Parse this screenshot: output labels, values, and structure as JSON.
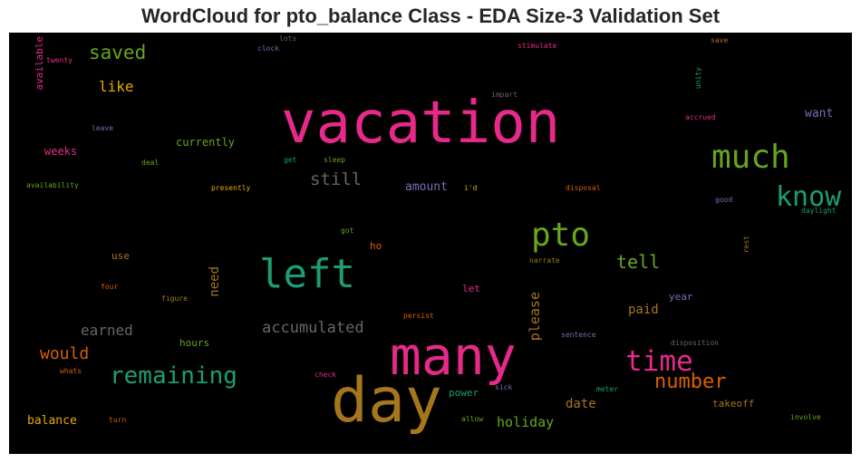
{
  "title": "WordCloud for pto_balance Class - EDA Size-3 Validation Set",
  "words": [
    {
      "text": "vacation",
      "color": "#e7298a"
    },
    {
      "text": "many",
      "color": "#e7298a"
    },
    {
      "text": "day",
      "color": "#a6761d"
    },
    {
      "text": "left",
      "color": "#1b9e77"
    },
    {
      "text": "pto",
      "color": "#66a61e"
    },
    {
      "text": "much",
      "color": "#66a61e"
    },
    {
      "text": "know",
      "color": "#1b9e77"
    },
    {
      "text": "time",
      "color": "#e7298a"
    },
    {
      "text": "remaining",
      "color": "#1b9e77"
    },
    {
      "text": "number",
      "color": "#d95f02"
    },
    {
      "text": "saved",
      "color": "#66a61e"
    },
    {
      "text": "still",
      "color": "#666666"
    },
    {
      "text": "accumulated",
      "color": "#666666"
    },
    {
      "text": "tell",
      "color": "#66a61e"
    },
    {
      "text": "earned",
      "color": "#666666"
    },
    {
      "text": "would",
      "color": "#d95f02"
    },
    {
      "text": "like",
      "color": "#e6ab02"
    },
    {
      "text": "holiday",
      "color": "#66a61e"
    },
    {
      "text": "please",
      "color": "#a6761d"
    },
    {
      "text": "need",
      "color": "#a6761d"
    },
    {
      "text": "balance",
      "color": "#e6ab02"
    },
    {
      "text": "date",
      "color": "#a6761d"
    },
    {
      "text": "paid",
      "color": "#a6761d"
    },
    {
      "text": "amount",
      "color": "#7570b3"
    },
    {
      "text": "want",
      "color": "#7570b3"
    },
    {
      "text": "currently",
      "color": "#66a61e"
    },
    {
      "text": "weeks",
      "color": "#e7298a"
    },
    {
      "text": "hours",
      "color": "#66a61e"
    },
    {
      "text": "year",
      "color": "#7570b3"
    },
    {
      "text": "takeoff",
      "color": "#a6761d"
    },
    {
      "text": "power",
      "color": "#1b9e77"
    },
    {
      "text": "available",
      "color": "#e7298a"
    },
    {
      "text": "use",
      "color": "#a6761d"
    },
    {
      "text": "ho",
      "color": "#d95f02"
    },
    {
      "text": "let",
      "color": "#e7298a"
    },
    {
      "text": "twenty",
      "color": "#e7298a"
    },
    {
      "text": "lots",
      "color": "#666666"
    },
    {
      "text": "clock",
      "color": "#7570b3"
    },
    {
      "text": "stimulate",
      "color": "#e7298a"
    },
    {
      "text": "save",
      "color": "#a6761d"
    },
    {
      "text": "unity",
      "color": "#1b9e77"
    },
    {
      "text": "impart",
      "color": "#666666"
    },
    {
      "text": "accrued",
      "color": "#e7298a"
    },
    {
      "text": "leave",
      "color": "#7570b3"
    },
    {
      "text": "deal",
      "color": "#66a61e"
    },
    {
      "text": "get",
      "color": "#1b9e77"
    },
    {
      "text": "sleep",
      "color": "#66a61e"
    },
    {
      "text": "availability",
      "color": "#66a61e"
    },
    {
      "text": "presently",
      "color": "#e6ab02"
    },
    {
      "text": "i'd",
      "color": "#e6ab02"
    },
    {
      "text": "disposal",
      "color": "#d95f02"
    },
    {
      "text": "good",
      "color": "#7570b3"
    },
    {
      "text": "daylight",
      "color": "#1b9e77"
    },
    {
      "text": "got",
      "color": "#66a61e"
    },
    {
      "text": "narrate",
      "color": "#a6761d"
    },
    {
      "text": "rest",
      "color": "#a6761d"
    },
    {
      "text": "four",
      "color": "#d95f02"
    },
    {
      "text": "figure",
      "color": "#a6761d"
    },
    {
      "text": "persist",
      "color": "#d95f02"
    },
    {
      "text": "sentence",
      "color": "#7570b3"
    },
    {
      "text": "disposition",
      "color": "#666666"
    },
    {
      "text": "whats",
      "color": "#d95f02"
    },
    {
      "text": "check",
      "color": "#e7298a"
    },
    {
      "text": "sick",
      "color": "#7570b3"
    },
    {
      "text": "meter",
      "color": "#1b9e77"
    },
    {
      "text": "turn",
      "color": "#d95f02"
    },
    {
      "text": "allow",
      "color": "#66a61e"
    },
    {
      "text": "involve",
      "color": "#66a61e"
    }
  ]
}
